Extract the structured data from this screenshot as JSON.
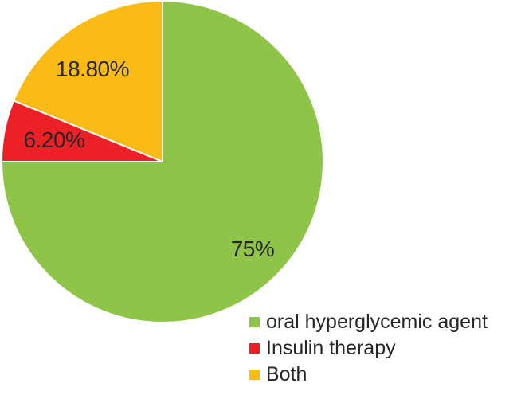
{
  "figure": {
    "background_color": "#FFFFFF",
    "text_color": "#262626"
  },
  "chart_data": {
    "type": "pie",
    "title": "",
    "slices": [
      {
        "label": "oral hyperglycemic agent",
        "value": 75,
        "display_label": "75%",
        "color": "#8EC549"
      },
      {
        "label": "Insulin therapy",
        "value": 6.2,
        "display_label": "6.20%",
        "color": "#EC2027"
      },
      {
        "label": "Both",
        "value": 18.8,
        "display_label": "18.80%",
        "color": "#FBBB16"
      }
    ],
    "start_angle_deg": 0,
    "direction": "clockwise",
    "separator_color": "#FFFFFF",
    "label_color": "#262626",
    "legend_position": "bottom-right",
    "legend_order": [
      "oral hyperglycemic agent",
      "Insulin therapy",
      "Both"
    ]
  }
}
